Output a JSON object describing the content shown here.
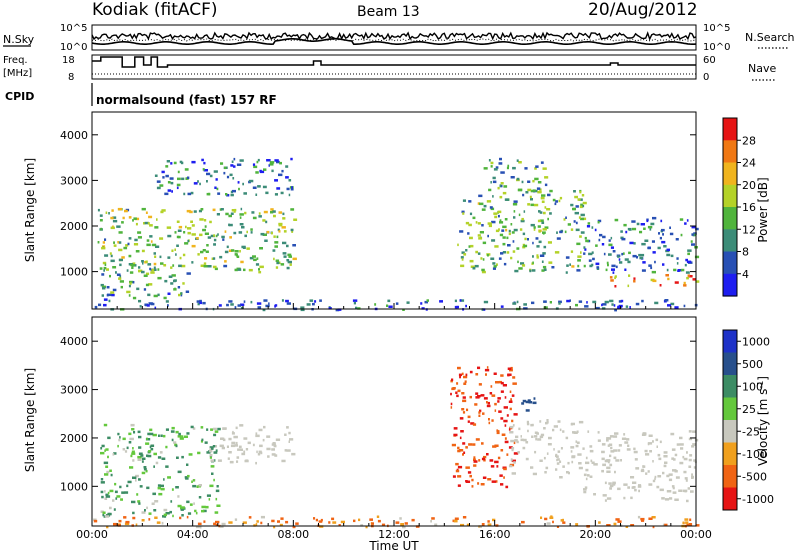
{
  "header": {
    "station": "Kodiak (fitACF)",
    "beam": "Beam 13",
    "date": "20/Aug/2012"
  },
  "top_panels": {
    "nsky_label": "N.Sky",
    "nsky_ticks": [
      "10^5",
      "10^0"
    ],
    "nsearch_label": "N.Search",
    "nsearch_ticks": [
      "10^5",
      "10^0"
    ],
    "freq_label_line1": "Freq.",
    "freq_label_line2": "[MHz]",
    "freq_ticks": [
      "18",
      "8"
    ],
    "nave_label": "Nave",
    "nave_ticks": [
      "60",
      "0"
    ],
    "cpid_label": "CPID",
    "cpid_text": "normalsound (fast) 157 RF",
    "freq_steps": [
      {
        "t": 0.0,
        "v": 16
      },
      {
        "t": 0.35,
        "v": 18
      },
      {
        "t": 1.2,
        "v": 13
      },
      {
        "t": 1.7,
        "v": 18
      },
      {
        "t": 2.05,
        "v": 14
      },
      {
        "t": 2.35,
        "v": 18
      },
      {
        "t": 2.6,
        "v": 13
      },
      {
        "t": 3.0,
        "v": 14
      },
      {
        "t": 4.0,
        "v": 14
      },
      {
        "t": 8.8,
        "v": 16
      },
      {
        "t": 9.1,
        "v": 14
      },
      {
        "t": 20.6,
        "v": 15
      },
      {
        "t": 20.9,
        "v": 14
      },
      {
        "t": 24.0,
        "v": 14
      }
    ]
  },
  "chart_data": [
    {
      "type": "heatmap",
      "title": "",
      "xlabel": "",
      "ylabel": "Slant Range [km]",
      "xlim": [
        0,
        24
      ],
      "ylim": [
        180,
        4500
      ],
      "yticks": [
        1000,
        2000,
        3000,
        4000
      ],
      "colorbar_label": "Power [dB]",
      "colorbar_ticks": [
        4,
        8,
        12,
        16,
        20,
        24,
        28
      ],
      "colorbar_range": [
        0,
        30
      ],
      "colors": [
        "#1e1ef0",
        "#2850b4",
        "#3c8c78",
        "#50b43c",
        "#b4d228",
        "#f0b41e",
        "#f07814",
        "#e61414"
      ],
      "regions": [
        {
          "t0": 0.2,
          "t1": 8.0,
          "r0": 1000,
          "r1": 2400,
          "v": 14
        },
        {
          "t0": 0.3,
          "t1": 3.8,
          "r0": 400,
          "r1": 1200,
          "v": 10
        },
        {
          "t0": 2.5,
          "t1": 8.0,
          "r0": 2700,
          "r1": 3500,
          "v": 7
        },
        {
          "t0": 14.5,
          "t1": 19.5,
          "r0": 1000,
          "r1": 2800,
          "v": 12
        },
        {
          "t0": 15.5,
          "t1": 18.0,
          "r0": 2800,
          "r1": 3500,
          "v": 11
        },
        {
          "t0": 19.5,
          "t1": 24.0,
          "r0": 1000,
          "r1": 2200,
          "v": 8
        },
        {
          "t0": 20.5,
          "t1": 24.0,
          "r0": 700,
          "r1": 950,
          "v": 22
        },
        {
          "t0": 0.0,
          "t1": 24.0,
          "r0": 180,
          "r1": 400,
          "v": 6
        }
      ]
    },
    {
      "type": "heatmap",
      "title": "",
      "xlabel": "Time UT",
      "ylabel": "Slant Range [km]",
      "xlim": [
        0,
        24
      ],
      "ylim": [
        180,
        4500
      ],
      "xticks": [
        "00:00",
        "04:00",
        "08:00",
        "12:00",
        "16:00",
        "20:00",
        "00:00"
      ],
      "yticks": [
        1000,
        2000,
        3000,
        4000
      ],
      "colorbar_label": "Velocity [m s^-1]",
      "colorbar_ticks": [
        1000,
        500,
        100,
        25,
        -25,
        -100,
        -500,
        -1000
      ],
      "colors": [
        "#1e32c8",
        "#28508c",
        "#3c8c64",
        "#64c83c",
        "#c8c8be",
        "#f0a01e",
        "#f06414",
        "#e61414"
      ],
      "regions": [
        {
          "t0": 0.3,
          "t1": 5.0,
          "r0": 400,
          "r1": 2300,
          "v": 100
        },
        {
          "t0": 4.5,
          "t1": 8.0,
          "r0": 1500,
          "r1": 2300,
          "v": 0
        },
        {
          "t0": 14.2,
          "t1": 16.8,
          "r0": 1000,
          "r1": 3500,
          "v": -500
        },
        {
          "t0": 16.5,
          "t1": 19.5,
          "r0": 1200,
          "r1": 2400,
          "v": 0
        },
        {
          "t0": 17.0,
          "t1": 17.8,
          "r0": 2500,
          "r1": 2900,
          "v": 800
        },
        {
          "t0": 19.5,
          "t1": 24.0,
          "r0": 700,
          "r1": 2200,
          "v": 0
        },
        {
          "t0": 0.0,
          "t1": 24.0,
          "r0": 180,
          "r1": 400,
          "v": -100
        }
      ]
    }
  ]
}
